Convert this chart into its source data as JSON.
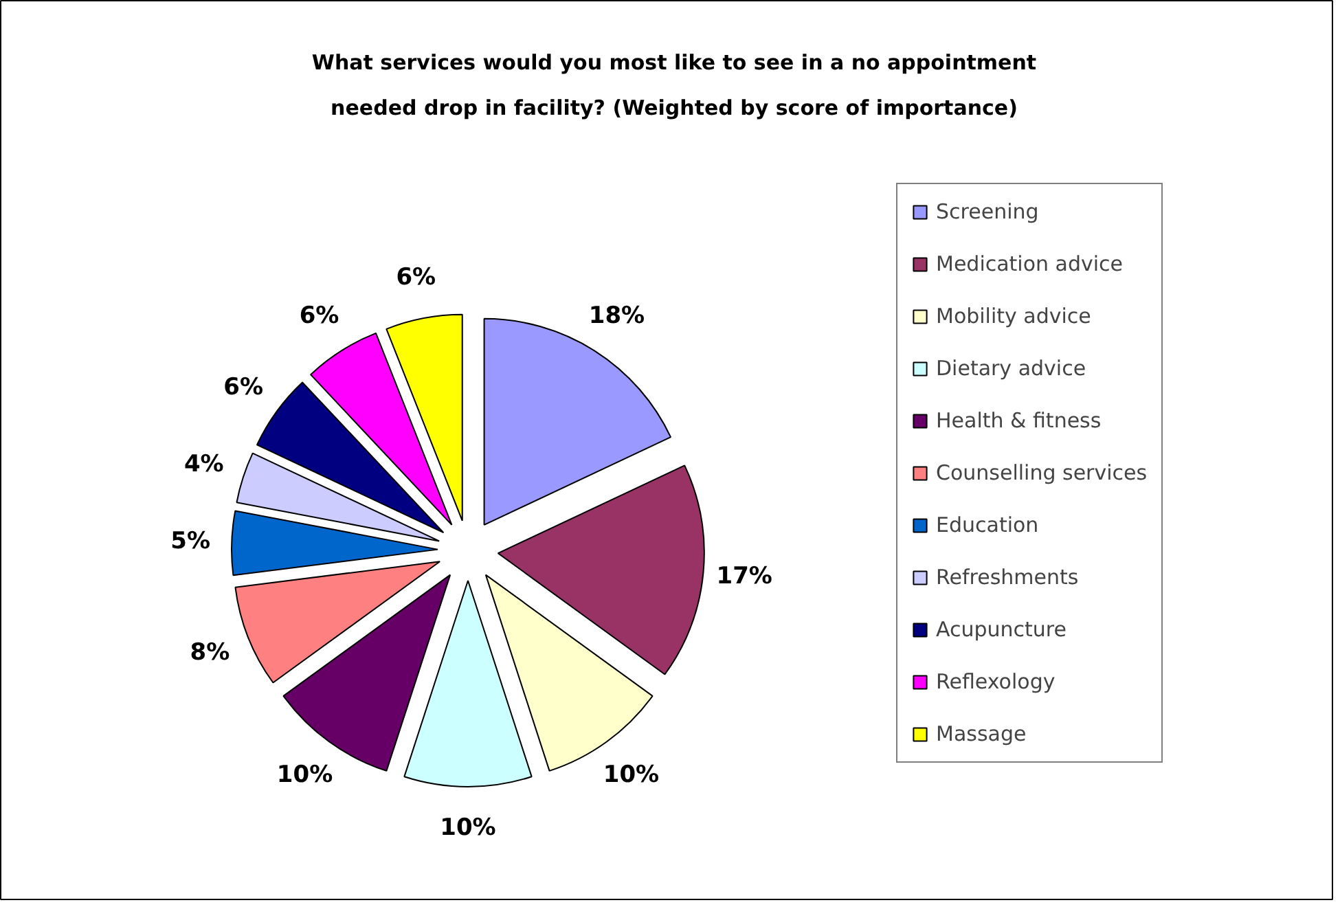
{
  "chart_data": {
    "type": "pie",
    "title": "What services would you most like to see in a no appointment needed drop in facility? (Weighted by score of importance)",
    "categories": [
      "Screening",
      "Medication advice",
      "Mobility advice",
      "Dietary advice",
      "Health & fitness",
      "Counselling services",
      "Education",
      "Refreshments",
      "Acupuncture",
      "Reflexology",
      "Massage"
    ],
    "values": [
      18,
      17,
      10,
      10,
      10,
      8,
      5,
      4,
      6,
      6,
      6
    ],
    "value_labels": [
      "18%",
      "17%",
      "10%",
      "10%",
      "10%",
      "8%",
      "5%",
      "4%",
      "6%",
      "6%",
      "6%"
    ],
    "colors": [
      "#9999ff",
      "#993366",
      "#ffffcc",
      "#ccffff",
      "#660066",
      "#ff8080",
      "#0066cc",
      "#ccccff",
      "#000080",
      "#ff00ff",
      "#ffff00"
    ],
    "legend": "right"
  }
}
